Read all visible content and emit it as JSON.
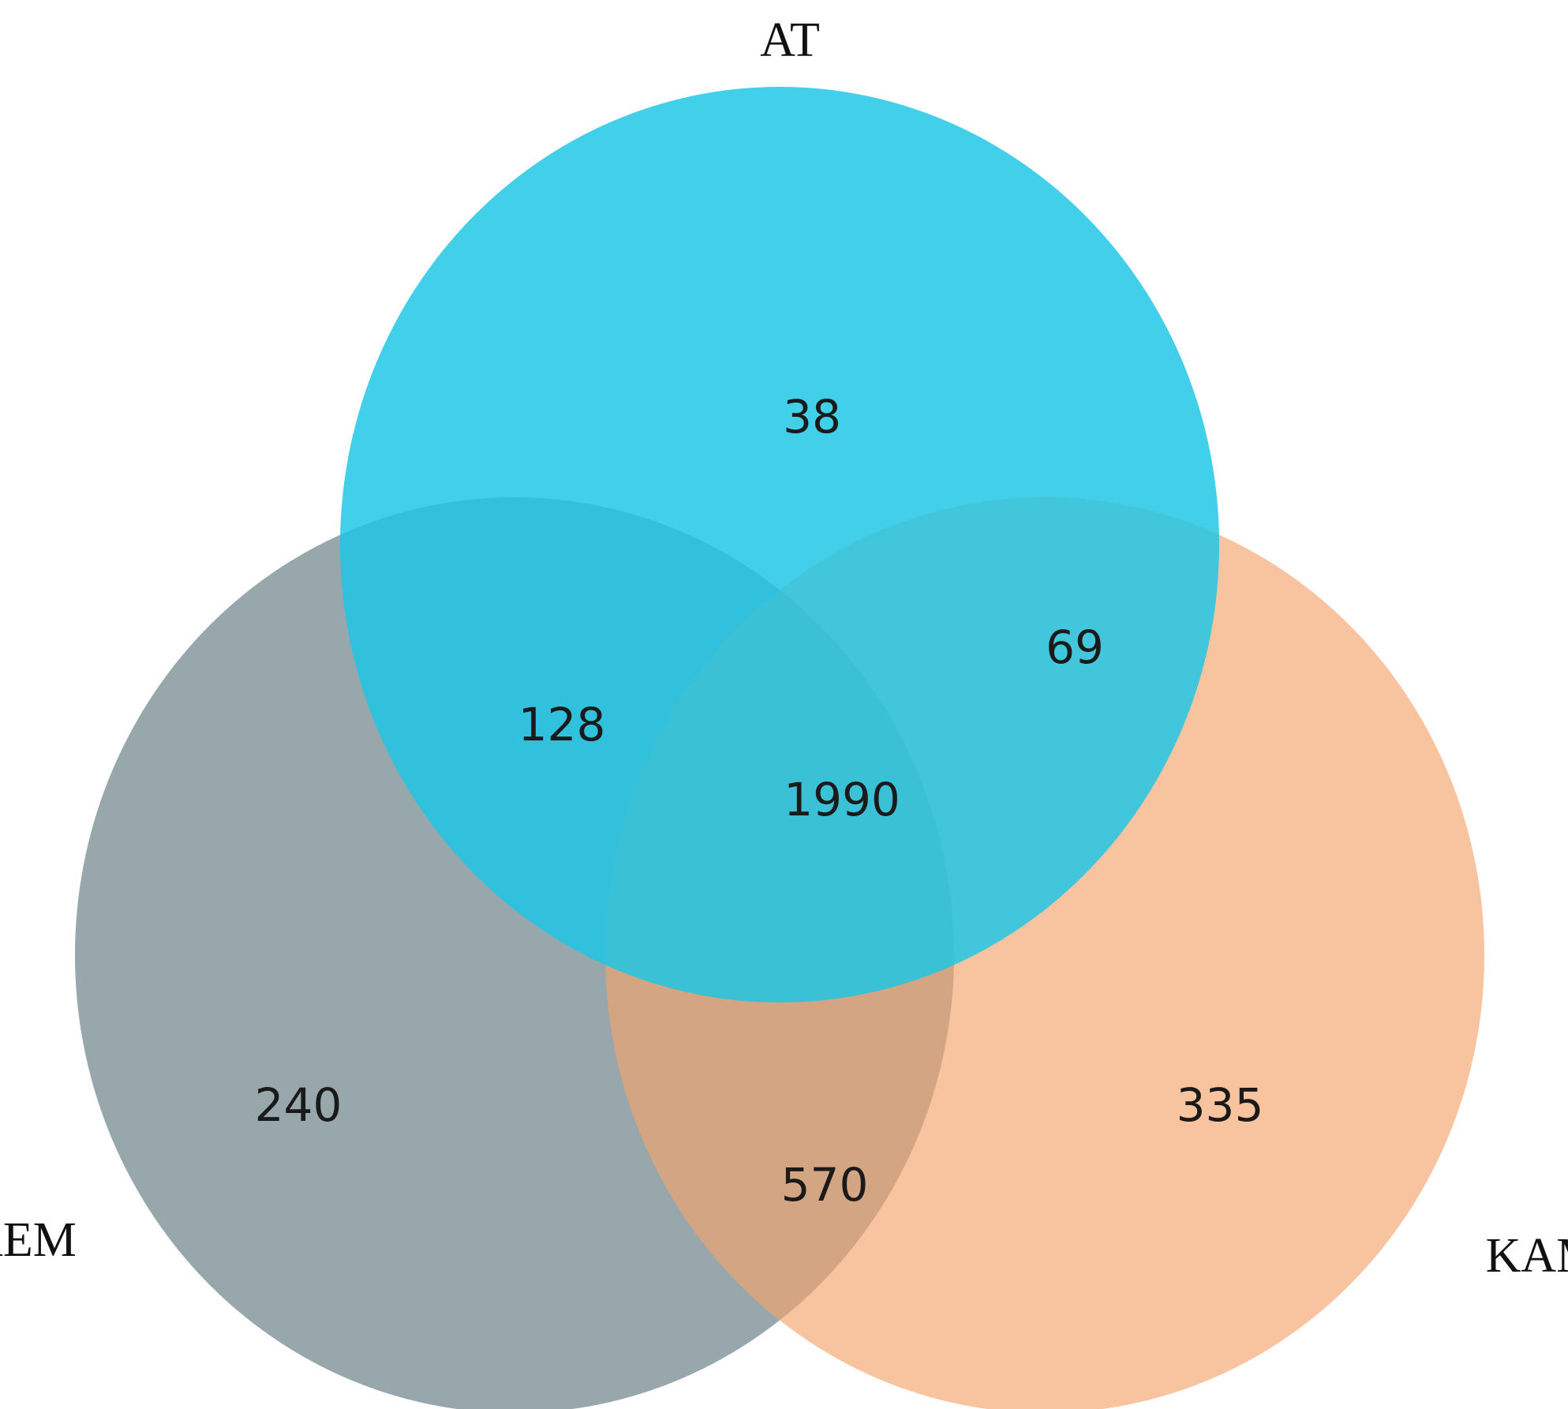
{
  "chart_data": {
    "type": "venn",
    "sets": [
      {
        "name": "AT",
        "color": "#1ec6e6"
      },
      {
        "name": "KEM",
        "color": "#6b8289"
      },
      {
        "name": "KAM",
        "color": "#f5a56c"
      }
    ],
    "regions": [
      {
        "sets": [
          "AT"
        ],
        "value": 38
      },
      {
        "sets": [
          "AT",
          "KEM"
        ],
        "value": 128
      },
      {
        "sets": [
          "AT",
          "KAM"
        ],
        "value": 69
      },
      {
        "sets": [
          "AT",
          "KEM",
          "KAM"
        ],
        "value": 1990
      },
      {
        "sets": [
          "KEM"
        ],
        "value": 240
      },
      {
        "sets": [
          "KEM",
          "KAM"
        ],
        "value": 570
      },
      {
        "sets": [
          "KAM"
        ],
        "value": 335
      }
    ]
  }
}
